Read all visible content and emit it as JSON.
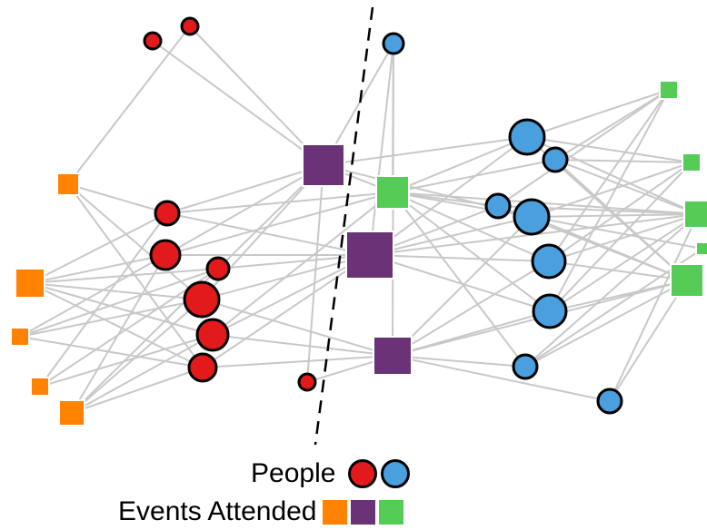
{
  "colors": {
    "person_left": "#e31a1c",
    "person_right": "#4a9fdf",
    "event_left": "#ff8200",
    "event_shared": "#6b3377",
    "event_right": "#55cc55",
    "edge": "#c8c8c8",
    "divider": "#000000"
  },
  "legend": {
    "people_label": "People",
    "events_label": "Events Attended"
  }
}
